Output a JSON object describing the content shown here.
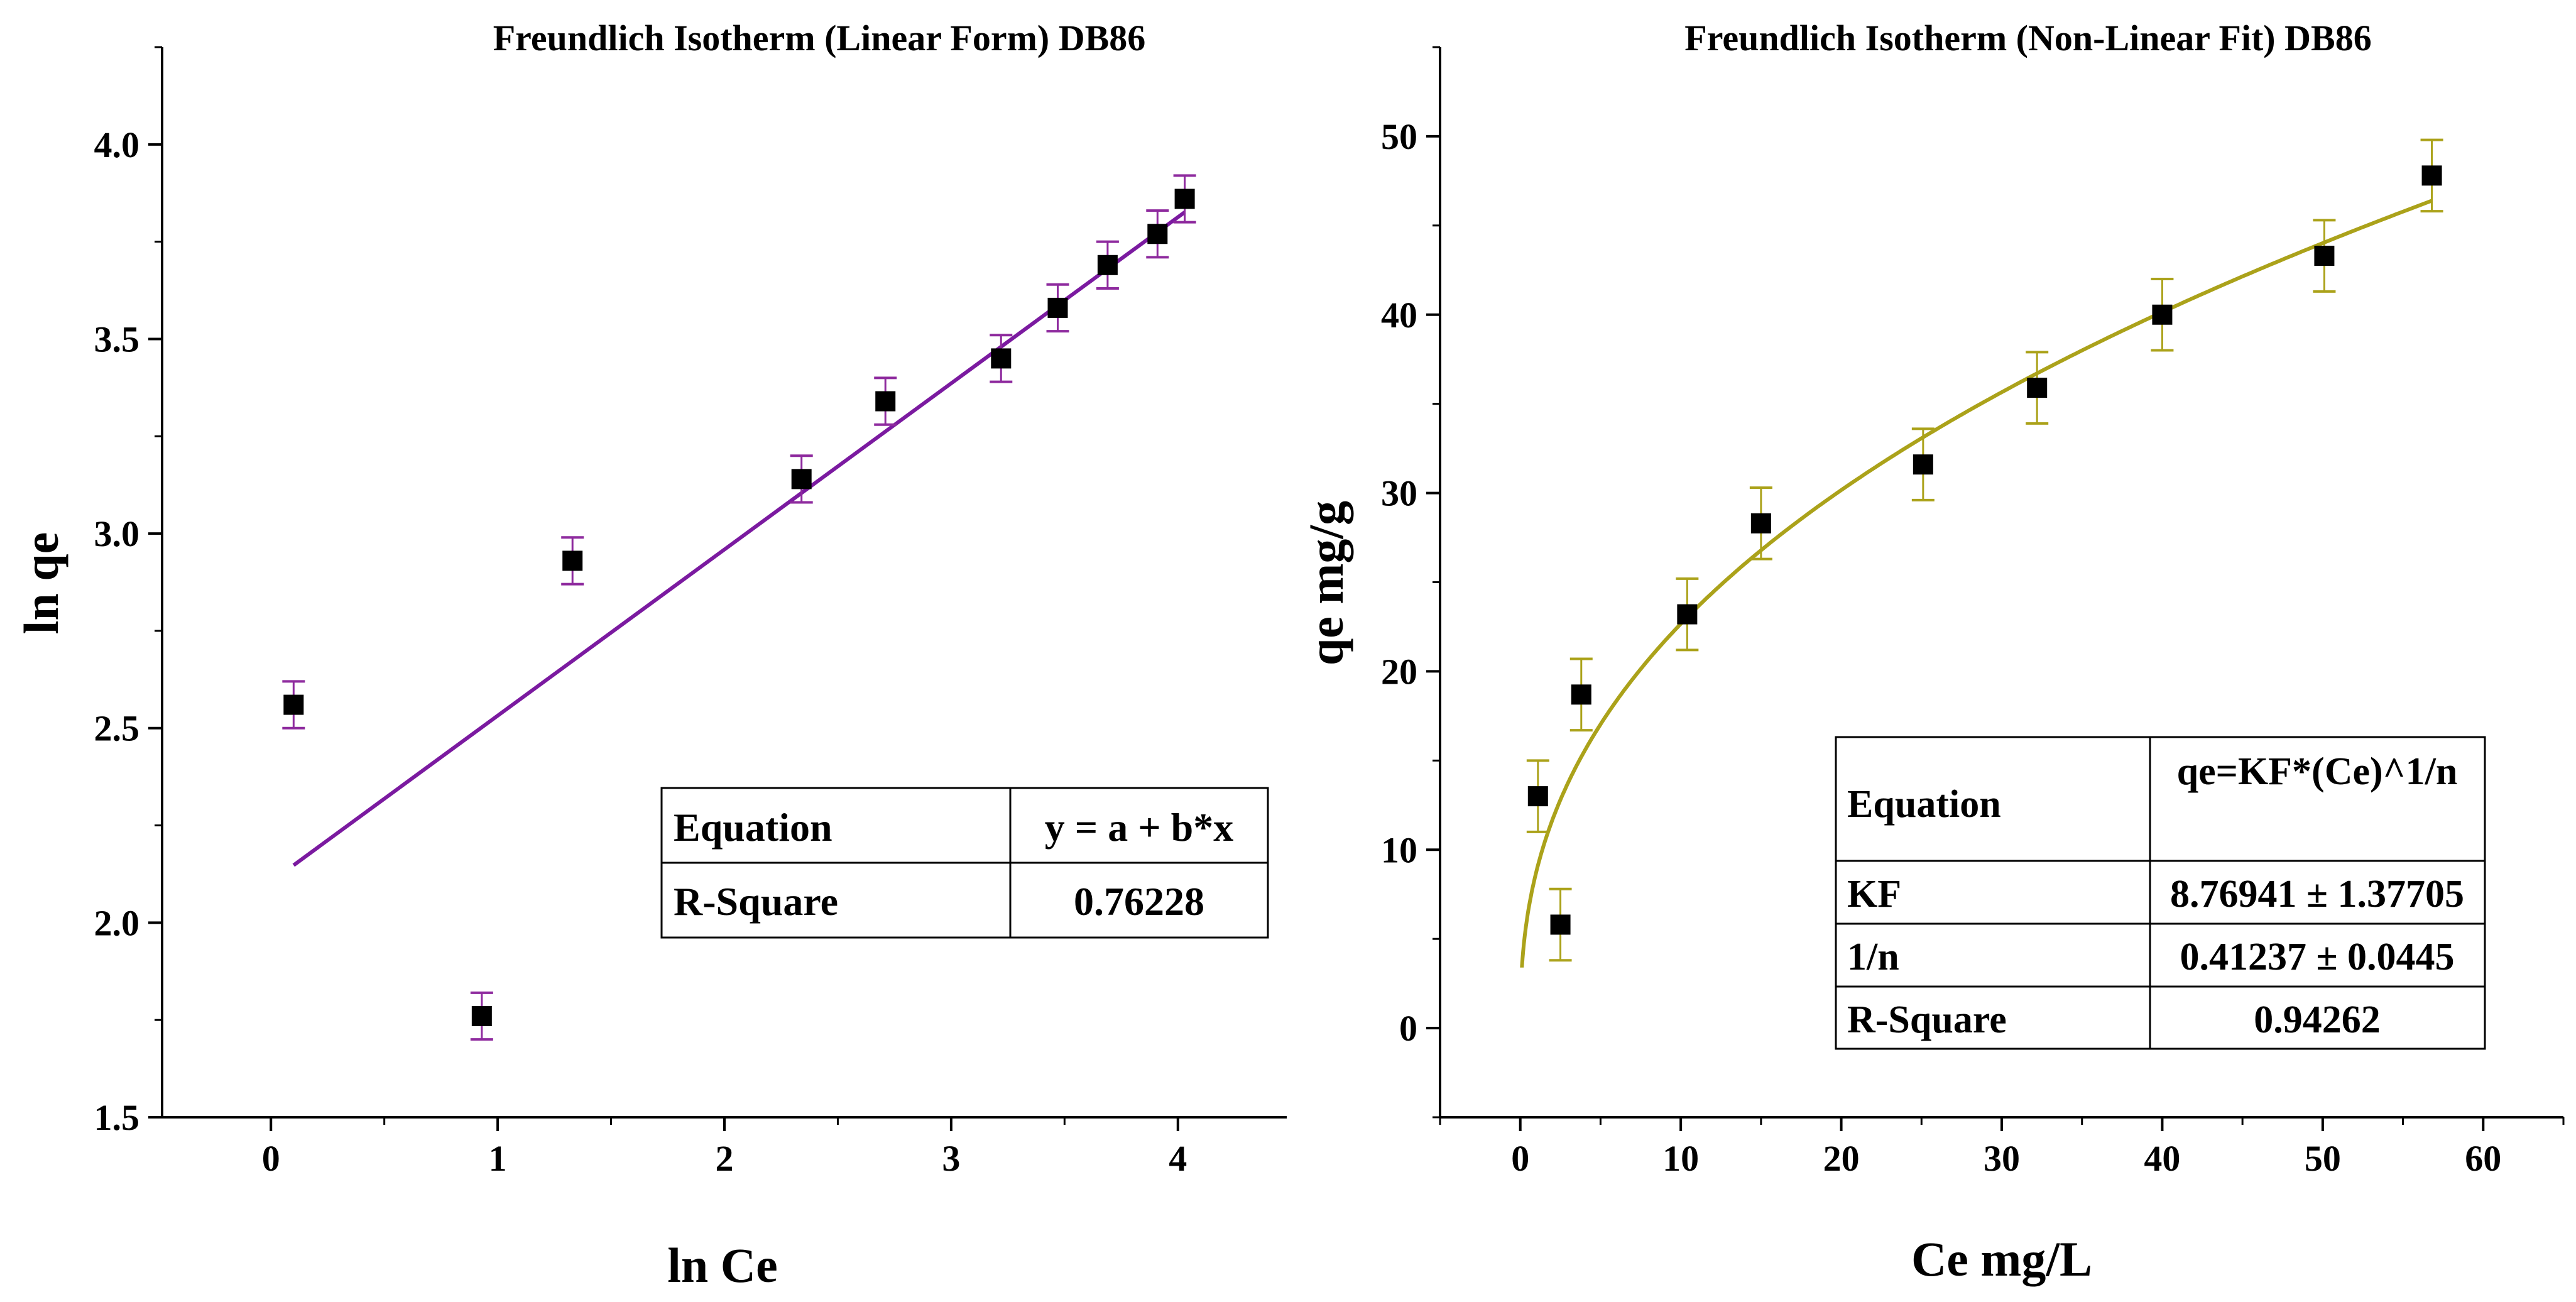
{
  "chart_data": [
    {
      "type": "scatter",
      "title": "Freundlich Isotherm (Linear Form) DB86",
      "xlabel": "ln Ce",
      "ylabel": "ln qe",
      "xlim": [
        -0.48,
        4.48
      ],
      "ylim": [
        1.5,
        4.25
      ],
      "x_ticks": [
        0,
        1,
        2,
        3,
        4
      ],
      "x_tick_labels": [
        "0",
        "1",
        "2",
        "3",
        "4"
      ],
      "y_ticks": [
        1.5,
        2.0,
        2.5,
        3.0,
        3.5,
        4.0
      ],
      "y_tick_labels": [
        "1.5",
        "2.0",
        "2.5",
        "3.0",
        "3.5",
        "4.0"
      ],
      "grid": false,
      "colors": {
        "fit": "#7b1aa0",
        "error": "#8e2a9e",
        "marker": "#000000"
      },
      "series": [
        {
          "name": "DB86",
          "x": [
            0.1,
            0.93,
            1.33,
            2.34,
            2.71,
            3.22,
            3.47,
            3.69,
            3.91,
            4.03
          ],
          "y": [
            2.56,
            1.76,
            2.93,
            3.14,
            3.34,
            3.45,
            3.58,
            3.69,
            3.77,
            3.86
          ],
          "error": [
            0.06,
            0.06,
            0.06,
            0.06,
            0.06,
            0.06,
            0.06,
            0.06,
            0.06,
            0.06
          ]
        }
      ],
      "fit": {
        "type": "linear",
        "a": 2.105,
        "b": 0.427,
        "x_range": [
          0.1,
          4.03
        ]
      },
      "table": {
        "rows": [
          [
            "Equation",
            "y = a + b*x"
          ],
          [
            "R-Square",
            "0.76228"
          ]
        ]
      }
    },
    {
      "type": "scatter",
      "title": "Freundlich Isotherm (Non-Linear Fit) DB86",
      "xlabel": "Ce mg/L",
      "ylabel": "qe mg/g",
      "xlim": [
        -5,
        65
      ],
      "ylim": [
        -5,
        55
      ],
      "x_ticks": [
        0,
        10,
        20,
        30,
        40,
        50,
        60
      ],
      "x_tick_labels": [
        "0",
        "10",
        "20",
        "30",
        "40",
        "50",
        "60"
      ],
      "y_ticks": [
        0,
        10,
        20,
        30,
        40,
        50
      ],
      "y_tick_labels": [
        "0",
        "10",
        "20",
        "30",
        "40",
        "50"
      ],
      "grid": false,
      "colors": {
        "fit": "#aba21a",
        "error": "#aba21a",
        "marker": "#000000"
      },
      "series": [
        {
          "name": "DB86",
          "x": [
            1.1,
            2.5,
            3.8,
            10.4,
            15.0,
            25.1,
            32.2,
            40.0,
            50.1,
            56.8
          ],
          "y": [
            13.0,
            5.8,
            18.7,
            23.2,
            28.3,
            31.6,
            35.9,
            40.0,
            43.3,
            47.8
          ],
          "error": [
            2.0,
            2.0,
            2.0,
            2.0,
            2.0,
            2.0,
            2.0,
            2.0,
            2.0,
            2.0
          ]
        }
      ],
      "fit": {
        "type": "freundlich",
        "KF": 8.76941,
        "n_inv": 0.41237,
        "x_range": [
          0.1,
          56.8
        ]
      },
      "table": {
        "rows": [
          [
            "Equation",
            "qe=KF*(Ce)^1/n"
          ],
          [
            "KF",
            "8.76941 ± 1.37705"
          ],
          [
            "1/n",
            "0.41237 ± 0.0445"
          ],
          [
            "R-Square",
            "0.94262"
          ]
        ]
      }
    }
  ]
}
